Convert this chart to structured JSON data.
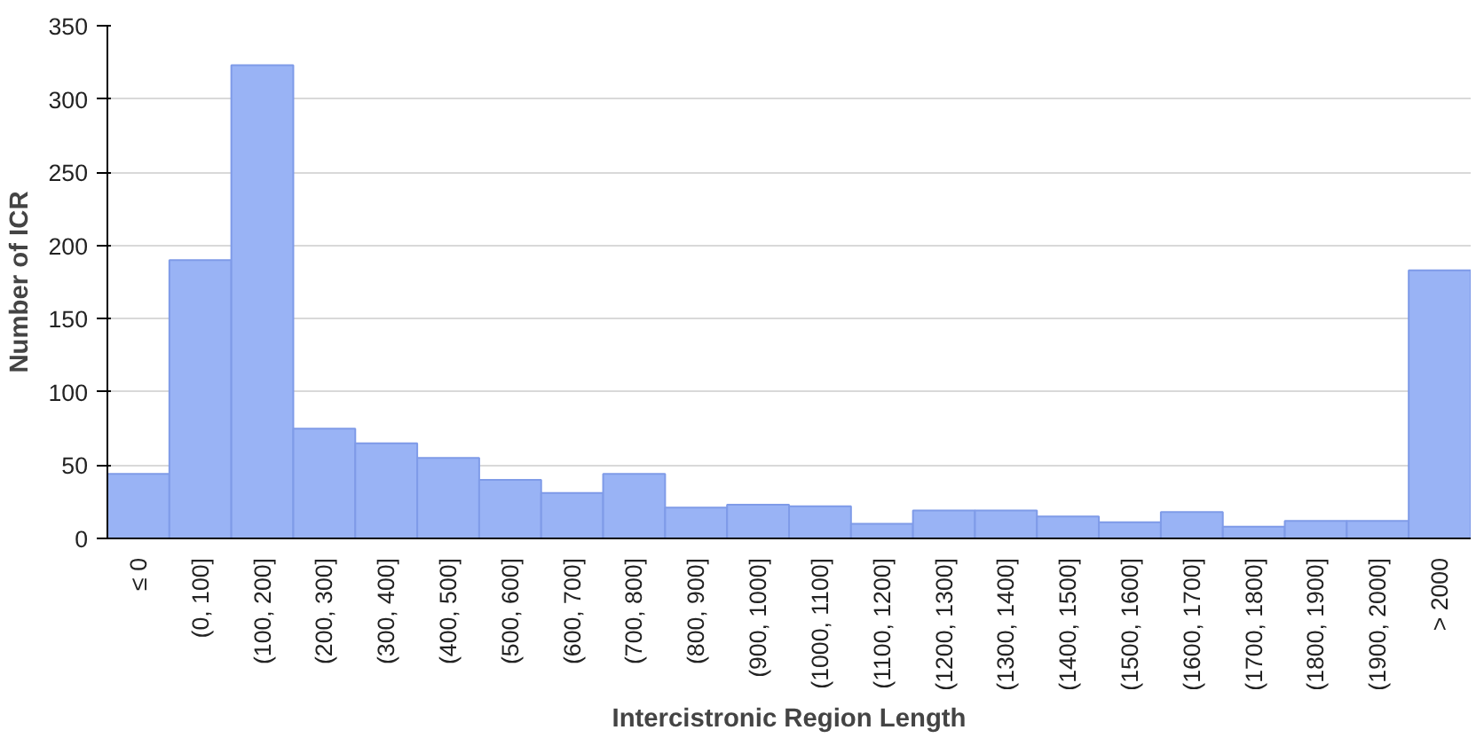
{
  "chart_data": {
    "type": "bar",
    "xlabel": "Intercistronic Region Length",
    "ylabel": "Number of ICR",
    "categories": [
      "≤ 0",
      "(0, 100]",
      "(100, 200]",
      "(200, 300]",
      "(300, 400]",
      "(400, 500]",
      "(500, 600]",
      "(600, 700]",
      "(700, 800]",
      "(800, 900]",
      "(900, 1000]",
      "(1000, 1100]",
      "(1100, 1200]",
      "(1200, 1300]",
      "(1300, 1400]",
      "(1400, 1500]",
      "(1500, 1600]",
      "(1600, 1700]",
      "(1700, 1800]",
      "(1800, 1900]",
      "(1900, 2000]",
      "> 2000"
    ],
    "values": [
      44,
      190,
      323,
      75,
      65,
      55,
      40,
      31,
      44,
      21,
      23,
      22,
      10,
      19,
      19,
      15,
      11,
      18,
      8,
      12,
      12,
      183
    ],
    "color": "#99b3f5",
    "ylim": [
      0,
      350
    ],
    "yticks": [
      0,
      50,
      100,
      150,
      200,
      250,
      300,
      350
    ],
    "grid": "y"
  }
}
